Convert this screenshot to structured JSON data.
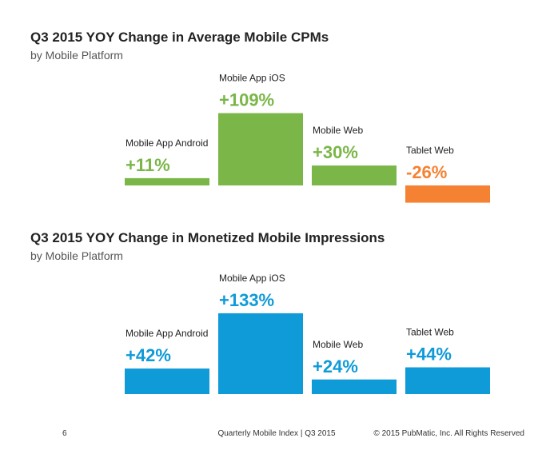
{
  "chart_data": [
    {
      "type": "bar",
      "title": "Q3 2015 YOY Change in Average Mobile CPMs",
      "subtitle": "by Mobile Platform",
      "categories": [
        "Mobile App Android",
        "Mobile App iOS",
        "Mobile Web",
        "Tablet Web"
      ],
      "values": [
        11,
        109,
        30,
        -26
      ],
      "value_labels": [
        "+11%",
        "+109%",
        "+30%",
        "-26%"
      ],
      "colors": [
        "#7ab648",
        "#7ab648",
        "#7ab648",
        "#f58233"
      ]
    },
    {
      "type": "bar",
      "title": "Q3 2015 YOY Change in Monetized Mobile Impressions",
      "subtitle": "by Mobile Platform",
      "categories": [
        "Mobile App Android",
        "Mobile App iOS",
        "Mobile Web",
        "Tablet Web"
      ],
      "values": [
        42,
        133,
        24,
        44
      ],
      "value_labels": [
        "+42%",
        "+133%",
        "+24%",
        "+44%"
      ],
      "colors": [
        "#0f9ad8",
        "#0f9ad8",
        "#0f9ad8",
        "#0f9ad8"
      ]
    }
  ],
  "footer": {
    "page": "6",
    "center": "Quarterly Mobile Index | Q3 2015",
    "right": "© 2015 PubMatic, Inc. All Rights Reserved"
  }
}
